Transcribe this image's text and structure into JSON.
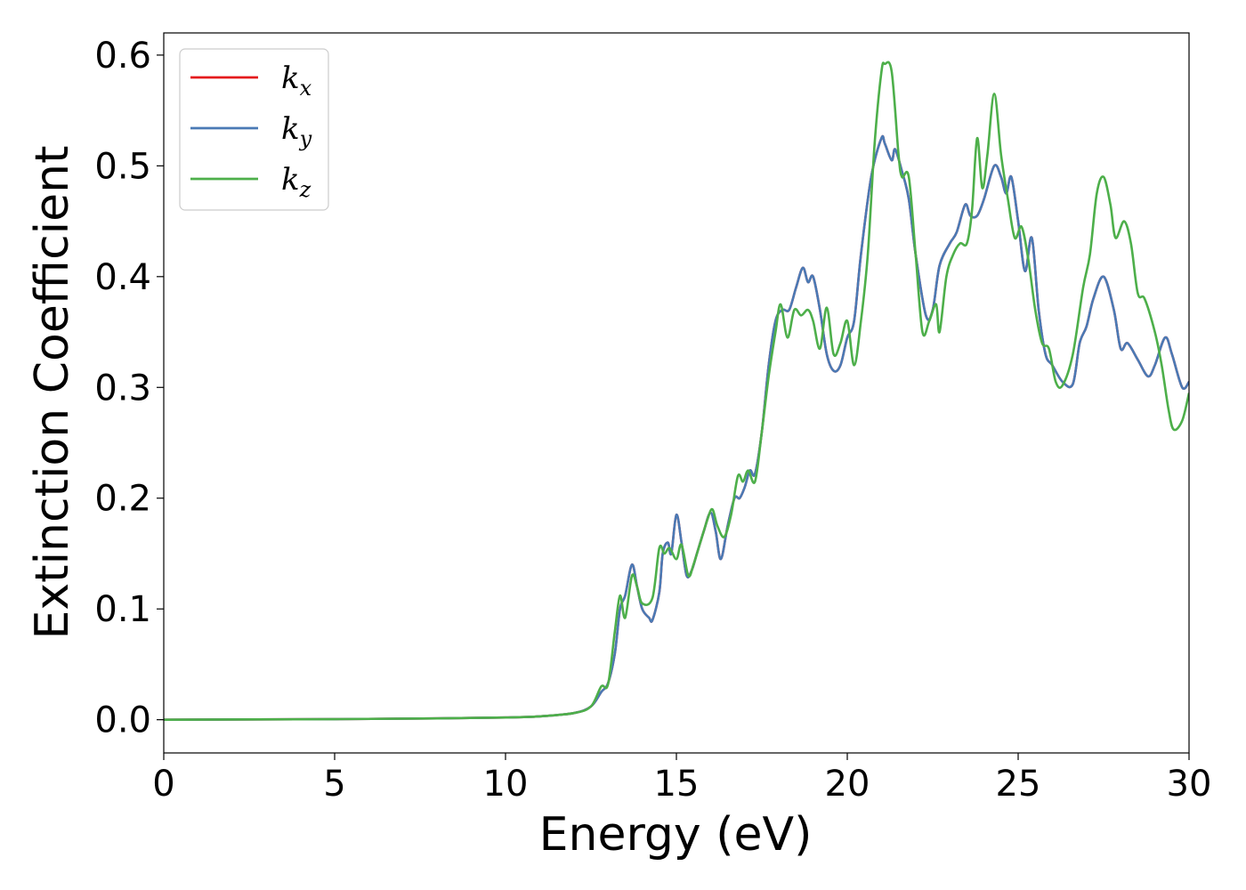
{
  "chart_data": {
    "type": "line",
    "title": "",
    "xlabel": "Energy (eV)",
    "ylabel": "Extinction Coefficient",
    "xlim": [
      0,
      30
    ],
    "ylim": [
      -0.03,
      0.62
    ],
    "xticks": [
      0,
      5,
      10,
      15,
      20,
      25,
      30
    ],
    "yticks": [
      0.0,
      0.1,
      0.2,
      0.3,
      0.4,
      0.5,
      0.6
    ],
    "xtick_labels": [
      "0",
      "5",
      "10",
      "15",
      "20",
      "25",
      "30"
    ],
    "ytick_labels": [
      "0.0",
      "0.1",
      "0.2",
      "0.3",
      "0.4",
      "0.5",
      "0.6"
    ],
    "grid": false,
    "legend_position": "top-left",
    "series": [
      {
        "name": "k",
        "subscript": "x",
        "color": "#e41a1c",
        "points": [
          [
            0,
            0.0
          ],
          [
            5,
            0.0005
          ],
          [
            8,
            0.0012
          ],
          [
            10,
            0.002
          ],
          [
            11,
            0.003
          ],
          [
            12,
            0.006
          ],
          [
            12.5,
            0.012
          ],
          [
            12.8,
            0.025
          ],
          [
            13.0,
            0.033
          ],
          [
            13.2,
            0.06
          ],
          [
            13.35,
            0.1
          ],
          [
            13.5,
            0.112
          ],
          [
            13.7,
            0.14
          ],
          [
            13.85,
            0.12
          ],
          [
            14.0,
            0.1
          ],
          [
            14.2,
            0.092
          ],
          [
            14.3,
            0.09
          ],
          [
            14.5,
            0.115
          ],
          [
            14.6,
            0.15
          ],
          [
            14.75,
            0.16
          ],
          [
            14.85,
            0.15
          ],
          [
            15.0,
            0.185
          ],
          [
            15.15,
            0.16
          ],
          [
            15.3,
            0.13
          ],
          [
            15.45,
            0.135
          ],
          [
            15.6,
            0.15
          ],
          [
            15.8,
            0.17
          ],
          [
            16.0,
            0.187
          ],
          [
            16.15,
            0.17
          ],
          [
            16.3,
            0.145
          ],
          [
            16.5,
            0.175
          ],
          [
            16.7,
            0.2
          ],
          [
            16.85,
            0.2
          ],
          [
            17.0,
            0.21
          ],
          [
            17.15,
            0.225
          ],
          [
            17.3,
            0.222
          ],
          [
            17.5,
            0.26
          ],
          [
            17.7,
            0.32
          ],
          [
            17.9,
            0.36
          ],
          [
            18.1,
            0.37
          ],
          [
            18.3,
            0.37
          ],
          [
            18.5,
            0.39
          ],
          [
            18.7,
            0.408
          ],
          [
            18.85,
            0.395
          ],
          [
            19.0,
            0.4
          ],
          [
            19.2,
            0.37
          ],
          [
            19.4,
            0.33
          ],
          [
            19.6,
            0.315
          ],
          [
            19.8,
            0.32
          ],
          [
            20.0,
            0.345
          ],
          [
            20.2,
            0.36
          ],
          [
            20.4,
            0.42
          ],
          [
            20.7,
            0.49
          ],
          [
            21.0,
            0.525
          ],
          [
            21.1,
            0.52
          ],
          [
            21.3,
            0.505
          ],
          [
            21.4,
            0.515
          ],
          [
            21.6,
            0.495
          ],
          [
            21.8,
            0.47
          ],
          [
            22.0,
            0.42
          ],
          [
            22.3,
            0.365
          ],
          [
            22.5,
            0.37
          ],
          [
            22.7,
            0.41
          ],
          [
            23.0,
            0.43
          ],
          [
            23.2,
            0.44
          ],
          [
            23.45,
            0.465
          ],
          [
            23.6,
            0.455
          ],
          [
            23.8,
            0.455
          ],
          [
            24.0,
            0.47
          ],
          [
            24.3,
            0.5
          ],
          [
            24.5,
            0.49
          ],
          [
            24.65,
            0.475
          ],
          [
            24.8,
            0.49
          ],
          [
            25.0,
            0.45
          ],
          [
            25.2,
            0.405
          ],
          [
            25.4,
            0.435
          ],
          [
            25.6,
            0.37
          ],
          [
            25.8,
            0.33
          ],
          [
            26.0,
            0.32
          ],
          [
            26.3,
            0.305
          ],
          [
            26.6,
            0.303
          ],
          [
            26.8,
            0.34
          ],
          [
            27.0,
            0.355
          ],
          [
            27.2,
            0.38
          ],
          [
            27.5,
            0.4
          ],
          [
            27.8,
            0.37
          ],
          [
            28.0,
            0.335
          ],
          [
            28.2,
            0.34
          ],
          [
            28.5,
            0.325
          ],
          [
            28.8,
            0.31
          ],
          [
            29.0,
            0.32
          ],
          [
            29.3,
            0.345
          ],
          [
            29.5,
            0.33
          ],
          [
            29.8,
            0.3
          ],
          [
            30.0,
            0.305
          ]
        ]
      },
      {
        "name": "k",
        "subscript": "y",
        "color": "#4a7ab5",
        "points": [
          [
            0,
            0.0
          ],
          [
            5,
            0.0005
          ],
          [
            8,
            0.0012
          ],
          [
            10,
            0.002
          ],
          [
            11,
            0.003
          ],
          [
            12,
            0.006
          ],
          [
            12.5,
            0.012
          ],
          [
            12.8,
            0.025
          ],
          [
            13.0,
            0.033
          ],
          [
            13.2,
            0.06
          ],
          [
            13.35,
            0.1
          ],
          [
            13.5,
            0.112
          ],
          [
            13.7,
            0.14
          ],
          [
            13.85,
            0.12
          ],
          [
            14.0,
            0.1
          ],
          [
            14.2,
            0.092
          ],
          [
            14.3,
            0.09
          ],
          [
            14.5,
            0.115
          ],
          [
            14.6,
            0.15
          ],
          [
            14.75,
            0.16
          ],
          [
            14.85,
            0.15
          ],
          [
            15.0,
            0.185
          ],
          [
            15.15,
            0.16
          ],
          [
            15.3,
            0.13
          ],
          [
            15.45,
            0.135
          ],
          [
            15.6,
            0.15
          ],
          [
            15.8,
            0.17
          ],
          [
            16.0,
            0.187
          ],
          [
            16.15,
            0.17
          ],
          [
            16.3,
            0.145
          ],
          [
            16.5,
            0.175
          ],
          [
            16.7,
            0.2
          ],
          [
            16.85,
            0.2
          ],
          [
            17.0,
            0.21
          ],
          [
            17.15,
            0.225
          ],
          [
            17.3,
            0.222
          ],
          [
            17.5,
            0.26
          ],
          [
            17.7,
            0.32
          ],
          [
            17.9,
            0.36
          ],
          [
            18.1,
            0.37
          ],
          [
            18.3,
            0.37
          ],
          [
            18.5,
            0.39
          ],
          [
            18.7,
            0.408
          ],
          [
            18.85,
            0.395
          ],
          [
            19.0,
            0.4
          ],
          [
            19.2,
            0.37
          ],
          [
            19.4,
            0.33
          ],
          [
            19.6,
            0.315
          ],
          [
            19.8,
            0.32
          ],
          [
            20.0,
            0.345
          ],
          [
            20.2,
            0.36
          ],
          [
            20.4,
            0.42
          ],
          [
            20.7,
            0.49
          ],
          [
            21.0,
            0.525
          ],
          [
            21.1,
            0.52
          ],
          [
            21.3,
            0.505
          ],
          [
            21.4,
            0.515
          ],
          [
            21.6,
            0.495
          ],
          [
            21.8,
            0.47
          ],
          [
            22.0,
            0.42
          ],
          [
            22.3,
            0.365
          ],
          [
            22.5,
            0.37
          ],
          [
            22.7,
            0.41
          ],
          [
            23.0,
            0.43
          ],
          [
            23.2,
            0.44
          ],
          [
            23.45,
            0.465
          ],
          [
            23.6,
            0.455
          ],
          [
            23.8,
            0.455
          ],
          [
            24.0,
            0.47
          ],
          [
            24.3,
            0.5
          ],
          [
            24.5,
            0.49
          ],
          [
            24.65,
            0.475
          ],
          [
            24.8,
            0.49
          ],
          [
            25.0,
            0.45
          ],
          [
            25.2,
            0.405
          ],
          [
            25.4,
            0.435
          ],
          [
            25.6,
            0.37
          ],
          [
            25.8,
            0.33
          ],
          [
            26.0,
            0.32
          ],
          [
            26.3,
            0.305
          ],
          [
            26.6,
            0.303
          ],
          [
            26.8,
            0.34
          ],
          [
            27.0,
            0.355
          ],
          [
            27.2,
            0.38
          ],
          [
            27.5,
            0.4
          ],
          [
            27.8,
            0.37
          ],
          [
            28.0,
            0.335
          ],
          [
            28.2,
            0.34
          ],
          [
            28.5,
            0.325
          ],
          [
            28.8,
            0.31
          ],
          [
            29.0,
            0.32
          ],
          [
            29.3,
            0.345
          ],
          [
            29.5,
            0.33
          ],
          [
            29.8,
            0.3
          ],
          [
            30.0,
            0.305
          ]
        ]
      },
      {
        "name": "k",
        "subscript": "z",
        "color": "#4daf4a",
        "points": [
          [
            0,
            0.0
          ],
          [
            5,
            0.0005
          ],
          [
            8,
            0.0012
          ],
          [
            10,
            0.002
          ],
          [
            11,
            0.003
          ],
          [
            12,
            0.006
          ],
          [
            12.5,
            0.012
          ],
          [
            12.8,
            0.03
          ],
          [
            13.0,
            0.032
          ],
          [
            13.2,
            0.08
          ],
          [
            13.35,
            0.112
          ],
          [
            13.5,
            0.092
          ],
          [
            13.7,
            0.13
          ],
          [
            13.85,
            0.12
          ],
          [
            14.0,
            0.105
          ],
          [
            14.3,
            0.11
          ],
          [
            14.5,
            0.155
          ],
          [
            14.65,
            0.15
          ],
          [
            14.8,
            0.155
          ],
          [
            15.0,
            0.145
          ],
          [
            15.15,
            0.158
          ],
          [
            15.35,
            0.13
          ],
          [
            15.5,
            0.14
          ],
          [
            15.7,
            0.16
          ],
          [
            15.9,
            0.18
          ],
          [
            16.05,
            0.19
          ],
          [
            16.2,
            0.175
          ],
          [
            16.4,
            0.165
          ],
          [
            16.6,
            0.185
          ],
          [
            16.8,
            0.22
          ],
          [
            16.95,
            0.215
          ],
          [
            17.1,
            0.225
          ],
          [
            17.3,
            0.215
          ],
          [
            17.5,
            0.26
          ],
          [
            17.7,
            0.31
          ],
          [
            17.9,
            0.35
          ],
          [
            18.05,
            0.375
          ],
          [
            18.25,
            0.345
          ],
          [
            18.45,
            0.37
          ],
          [
            18.65,
            0.365
          ],
          [
            18.85,
            0.37
          ],
          [
            19.0,
            0.36
          ],
          [
            19.2,
            0.335
          ],
          [
            19.4,
            0.372
          ],
          [
            19.6,
            0.33
          ],
          [
            19.8,
            0.34
          ],
          [
            20.0,
            0.36
          ],
          [
            20.2,
            0.32
          ],
          [
            20.4,
            0.36
          ],
          [
            20.6,
            0.42
          ],
          [
            20.8,
            0.52
          ],
          [
            21.0,
            0.585
          ],
          [
            21.1,
            0.592
          ],
          [
            21.3,
            0.585
          ],
          [
            21.5,
            0.51
          ],
          [
            21.6,
            0.49
          ],
          [
            21.8,
            0.49
          ],
          [
            22.0,
            0.42
          ],
          [
            22.2,
            0.35
          ],
          [
            22.4,
            0.36
          ],
          [
            22.6,
            0.375
          ],
          [
            22.7,
            0.35
          ],
          [
            22.9,
            0.4
          ],
          [
            23.1,
            0.42
          ],
          [
            23.3,
            0.43
          ],
          [
            23.5,
            0.43
          ],
          [
            23.65,
            0.46
          ],
          [
            23.8,
            0.525
          ],
          [
            23.95,
            0.48
          ],
          [
            24.1,
            0.51
          ],
          [
            24.3,
            0.565
          ],
          [
            24.5,
            0.51
          ],
          [
            24.7,
            0.47
          ],
          [
            24.9,
            0.435
          ],
          [
            25.1,
            0.445
          ],
          [
            25.3,
            0.415
          ],
          [
            25.5,
            0.37
          ],
          [
            25.7,
            0.34
          ],
          [
            25.9,
            0.335
          ],
          [
            26.1,
            0.305
          ],
          [
            26.3,
            0.302
          ],
          [
            26.6,
            0.33
          ],
          [
            26.9,
            0.39
          ],
          [
            27.1,
            0.42
          ],
          [
            27.3,
            0.475
          ],
          [
            27.5,
            0.49
          ],
          [
            27.7,
            0.465
          ],
          [
            27.85,
            0.435
          ],
          [
            28.1,
            0.45
          ],
          [
            28.3,
            0.43
          ],
          [
            28.5,
            0.385
          ],
          [
            28.7,
            0.38
          ],
          [
            29.0,
            0.35
          ],
          [
            29.2,
            0.32
          ],
          [
            29.4,
            0.28
          ],
          [
            29.55,
            0.262
          ],
          [
            29.8,
            0.27
          ],
          [
            30.0,
            0.295
          ]
        ]
      }
    ]
  }
}
